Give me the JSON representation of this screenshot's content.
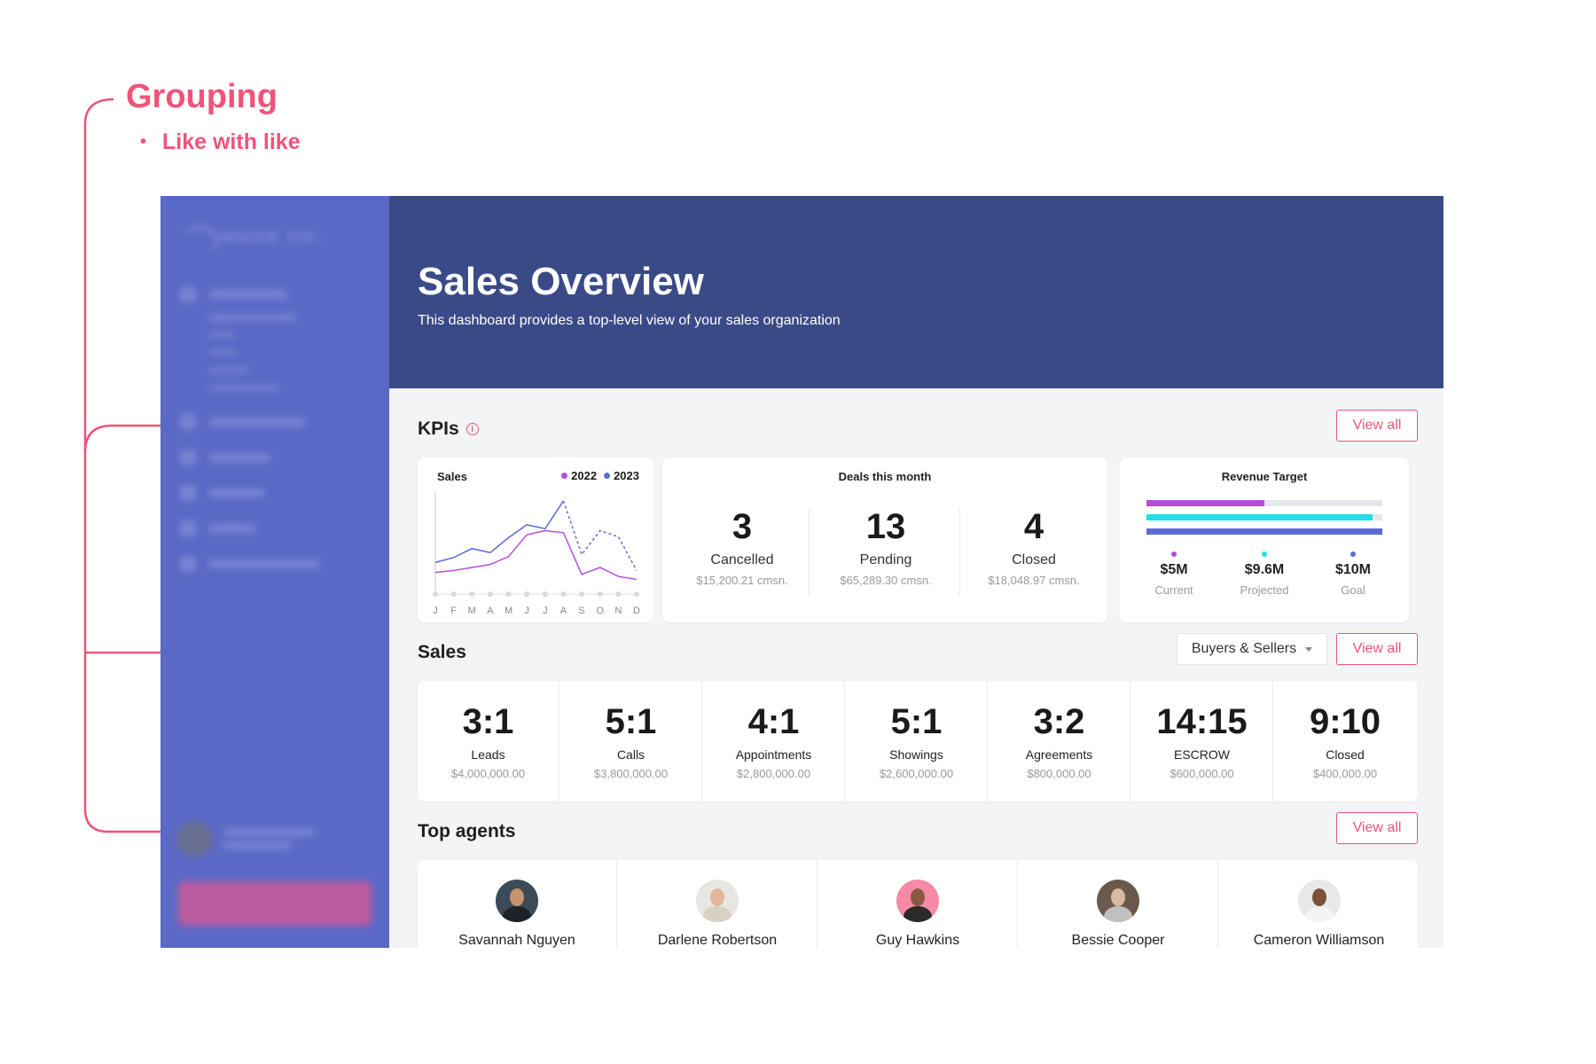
{
  "annotation": {
    "title": "Grouping",
    "bullet": "Like with like",
    "color": "#f0537a"
  },
  "header": {
    "title": "Sales Overview",
    "subtitle": "This dashboard provides a top-level view of your sales organization",
    "bg": "#3a4a87"
  },
  "sidebar": {
    "bg": "#5b69c6",
    "logo": "wave co."
  },
  "kpis": {
    "title": "KPIs",
    "view_all": "View all",
    "sales_card": {
      "label": "Sales",
      "legend": [
        {
          "name": "2022",
          "color": "#b44ed9"
        },
        {
          "name": "2023",
          "color": "#5a6bd6"
        }
      ],
      "months": [
        "J",
        "F",
        "M",
        "A",
        "M",
        "J",
        "J",
        "A",
        "S",
        "O",
        "N",
        "D"
      ]
    },
    "deals_card": {
      "label": "Deals this month",
      "items": [
        {
          "num": "3",
          "label": "Cancelled",
          "sub": "$15,200.21 cmsn."
        },
        {
          "num": "13",
          "label": "Pending",
          "sub": "$65,289.30 cmsn."
        },
        {
          "num": "4",
          "label": "Closed",
          "sub": "$18,048.97 cmsn."
        }
      ]
    },
    "revenue_card": {
      "label": "Revenue Target",
      "bars": [
        {
          "name": "Current",
          "value": "$5M",
          "fraction": 0.5,
          "color": "#b44ed9"
        },
        {
          "name": "Projected",
          "value": "$9.6M",
          "fraction": 0.96,
          "color": "#1ce0ea"
        },
        {
          "name": "Goal",
          "value": "$10M",
          "fraction": 1.0,
          "color": "#5a6bd6"
        }
      ]
    }
  },
  "sales": {
    "title": "Sales",
    "filter": "Buyers & Sellers",
    "view_all": "View all",
    "ratios": [
      {
        "ratio": "3:1",
        "name": "Leads",
        "amount": "$4,000,000.00"
      },
      {
        "ratio": "5:1",
        "name": "Calls",
        "amount": "$3,800,000.00"
      },
      {
        "ratio": "4:1",
        "name": "Appointments",
        "amount": "$2,800,000.00"
      },
      {
        "ratio": "5:1",
        "name": "Showings",
        "amount": "$2,600,000.00"
      },
      {
        "ratio": "3:2",
        "name": "Agreements",
        "amount": "$800,000.00"
      },
      {
        "ratio": "14:15",
        "name": "ESCROW",
        "amount": "$600,000.00"
      },
      {
        "ratio": "9:10",
        "name": "Closed",
        "amount": "$400,000.00"
      }
    ]
  },
  "top_agents": {
    "title": "Top agents",
    "view_all": "View all",
    "agents": [
      {
        "name": "Savannah Nguyen"
      },
      {
        "name": "Darlene Robertson"
      },
      {
        "name": "Guy Hawkins"
      },
      {
        "name": "Bessie Cooper"
      },
      {
        "name": "Cameron Williamson"
      }
    ]
  },
  "chart_data": {
    "type": "line",
    "title": "Sales",
    "categories": [
      "J",
      "F",
      "M",
      "A",
      "M",
      "J",
      "J",
      "A",
      "S",
      "O",
      "N",
      "D"
    ],
    "series": [
      {
        "name": "2022",
        "values": [
          20,
          22,
          25,
          28,
          36,
          58,
          62,
          60,
          18,
          25,
          16,
          13
        ]
      },
      {
        "name": "2023",
        "values": [
          30,
          35,
          44,
          40,
          55,
          68,
          64,
          92,
          38,
          62,
          56,
          22
        ]
      }
    ],
    "ylim": [
      0,
      100
    ],
    "grid": false,
    "legend": "top-right"
  }
}
